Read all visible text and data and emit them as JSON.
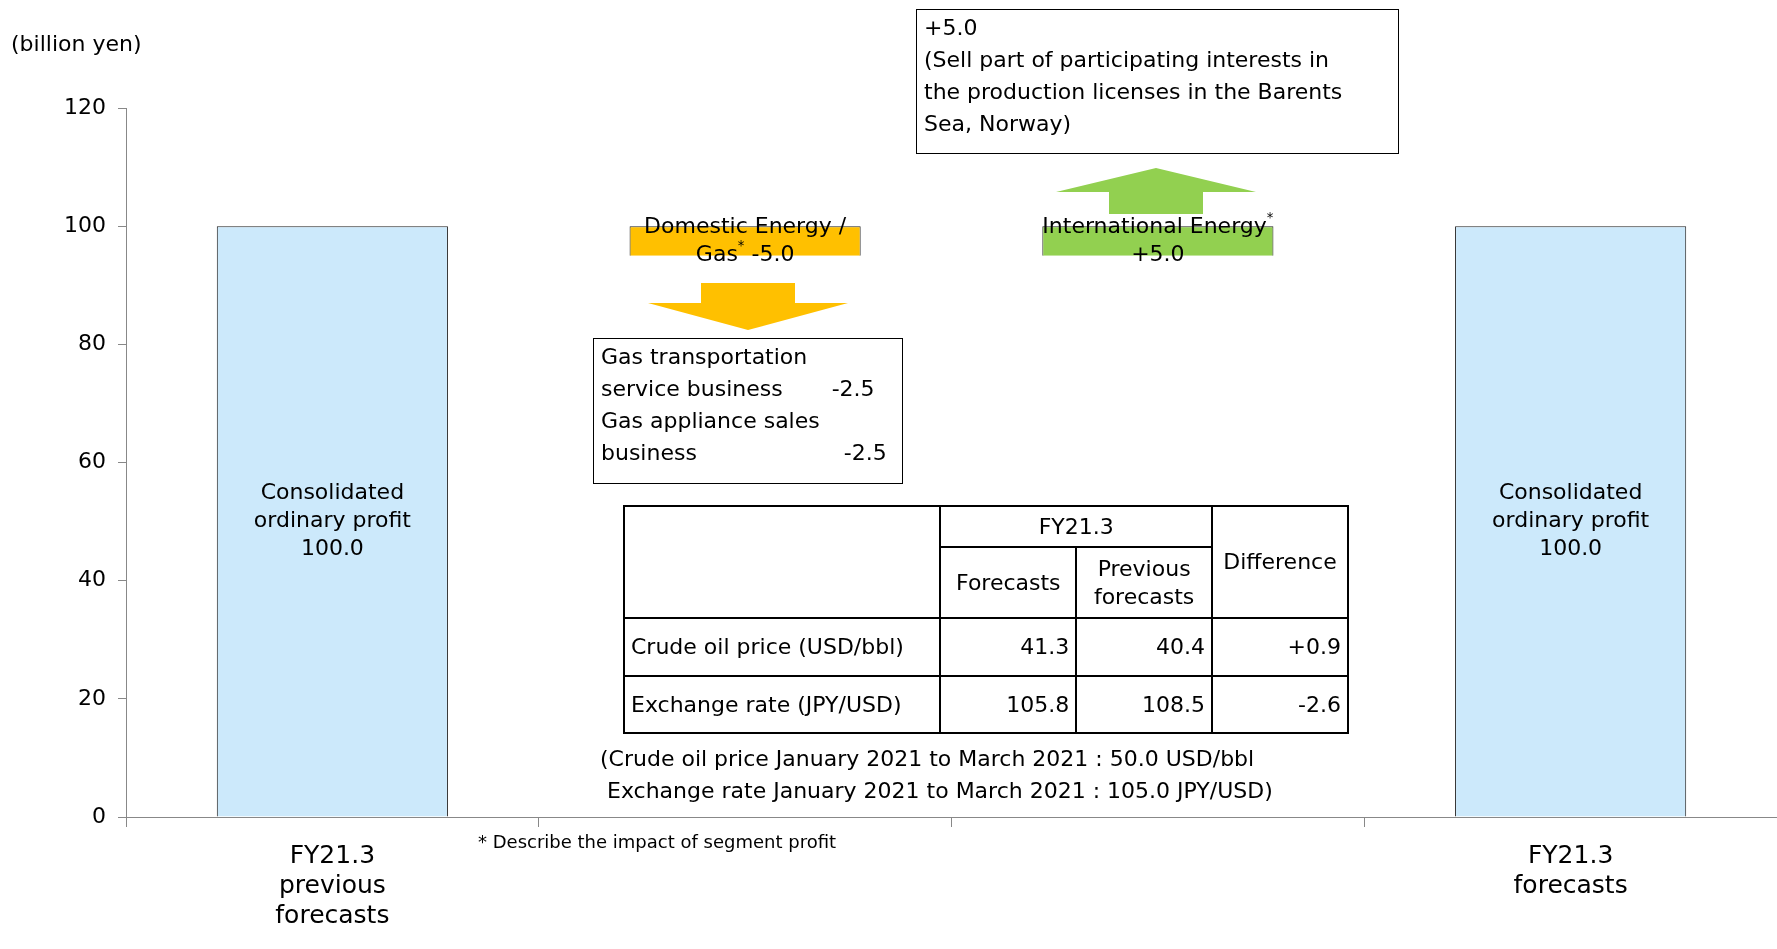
{
  "chart_data": {
    "type": "bar",
    "ylabel": "(billion yen)",
    "categories": [
      "FY21.3 previous forecasts",
      null,
      null,
      "FY21.3 forecasts"
    ],
    "values": [
      100,
      -5.0,
      5.0,
      100
    ],
    "base": [
      0,
      100,
      95,
      0
    ],
    "colors": [
      "#cce9fb",
      "#ffc000",
      "#92d050",
      "#cce9fb"
    ],
    "value_labels": [
      "Consolidated\nordinary profit\n100.0",
      "Domestic Energy /\nGas$^{*}$ -5.0",
      "International Energy$^{*}$\n+5.0",
      "Consolidated\nordinary profit\n100.0"
    ],
    "ylim": [
      0,
      120
    ],
    "yticks": [
      0,
      20,
      40,
      60,
      80,
      100,
      120
    ],
    "grid": false,
    "legend": false,
    "annotations": [
      "Gas transportation\nservice business       -2.5\nGas appliance sales\nbusiness                     -2.5",
      "+5.0\n(Sell part of participating interests in\nthe production licenses in the Barents\nSea, Norway)",
      "FY21.3",
      "Forecasts",
      "Previous\nforecasts",
      "Difference",
      "Crude oil price (USD/bbl)",
      "41.3",
      "40.4",
      "+0.9",
      "Exchange rate (JPY/USD)",
      "105.8",
      "108.5",
      "-2.6",
      "(Crude oil price January 2021 to March 2021 : 50.0 USD/bbl\n Exchange rate January 2021 to March 2021 : 105.0 JPY/USD)",
      "* Describe the impact of segment profit"
    ]
  }
}
